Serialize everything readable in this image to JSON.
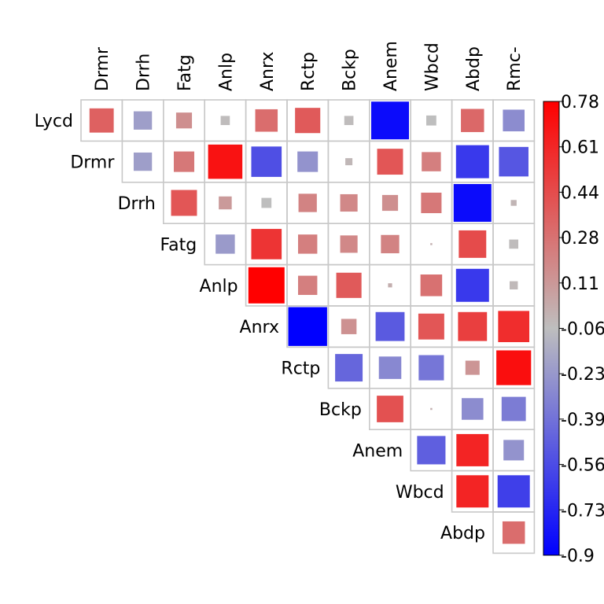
{
  "chart_data": {
    "type": "heatmap",
    "title": "",
    "columns": [
      "Drmr",
      "Drrh",
      "Fatg",
      "Anlp",
      "Anrx",
      "Rctp",
      "Bckp",
      "Anem",
      "Wbcd",
      "Abdp",
      "Rmc-"
    ],
    "rows": [
      "Lycd",
      "Drmr",
      "Drrh",
      "Fatg",
      "Anlp",
      "Anrx",
      "Rctp",
      "Bckp",
      "Anem",
      "Wbcd",
      "Abdp"
    ],
    "values": [
      [
        0.35,
        -0.2,
        0.15,
        -0.05,
        0.3,
        0.38,
        -0.05,
        -0.85,
        -0.06,
        0.32,
        -0.28
      ],
      [
        null,
        -0.2,
        0.25,
        0.7,
        -0.55,
        -0.25,
        -0.03,
        0.4,
        0.22,
        -0.65,
        -0.52
      ],
      [
        null,
        null,
        0.4,
        0.1,
        -0.06,
        0.2,
        0.18,
        0.15,
        0.25,
        -0.85,
        -0.02
      ],
      [
        null,
        null,
        null,
        -0.22,
        0.55,
        0.22,
        0.18,
        0.2,
        0.0,
        0.45,
        -0.05
      ],
      [
        null,
        null,
        null,
        null,
        0.78,
        0.22,
        0.38,
        0.01,
        0.28,
        -0.65,
        -0.04
      ],
      [
        null,
        null,
        null,
        null,
        null,
        -0.9,
        0.14,
        -0.5,
        0.4,
        0.5,
        0.58
      ],
      [
        null,
        null,
        null,
        null,
        null,
        null,
        -0.45,
        -0.3,
        -0.38,
        0.12,
        0.72
      ],
      [
        null,
        null,
        null,
        null,
        null,
        null,
        null,
        0.42,
        0.0,
        -0.28,
        -0.35
      ],
      [
        null,
        null,
        null,
        null,
        null,
        null,
        null,
        null,
        -0.48,
        0.62,
        -0.25
      ],
      [
        null,
        null,
        null,
        null,
        null,
        null,
        null,
        null,
        null,
        0.62,
        -0.62
      ],
      [
        null,
        null,
        null,
        null,
        null,
        null,
        null,
        null,
        null,
        null,
        0.3
      ]
    ],
    "colorbar": {
      "range": [
        -0.9,
        0.78
      ],
      "ticks": [
        "0.78",
        "0.61",
        "0.44",
        "0.28",
        "0.11",
        "-0.06",
        "-0.23",
        "-0.39",
        "-0.56",
        "-0.73",
        "-0.9"
      ],
      "colors": {
        "low": "#0000ff",
        "mid": "#bebebe",
        "high": "#ff0000"
      }
    },
    "legend_position": "right",
    "grid": true
  }
}
